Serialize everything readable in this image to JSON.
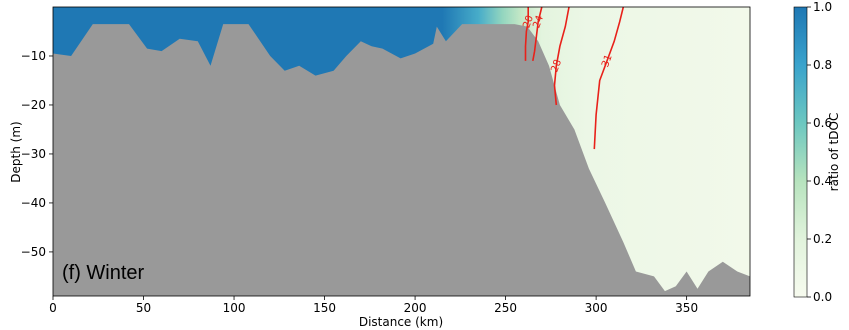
{
  "chart_data": {
    "type": "heatmap",
    "panel_label": "(f) Winter",
    "xlabel": "Distance (km)",
    "ylabel": "Depth (m)",
    "xlim": [
      0,
      385
    ],
    "ylim": [
      -59,
      0
    ],
    "x_ticks": [
      0,
      50,
      100,
      150,
      200,
      250,
      300,
      350
    ],
    "y_ticks": [
      -10,
      -20,
      -30,
      -40,
      -50
    ],
    "colorbar": {
      "label": "ratio of tDOC",
      "range": [
        0.0,
        1.0
      ],
      "ticks": [
        "0.0",
        "0.2",
        "0.4",
        "0.6",
        "0.8",
        "1.0"
      ],
      "colors": [
        "#f7fbef",
        "#e1f3dc",
        "#b7e3be",
        "#6cc7c0",
        "#3aa3cc",
        "#1f78b4"
      ]
    },
    "field": {
      "high_ratio_extent_km": [
        0,
        250
      ],
      "high_ratio_value": 1.0,
      "offshore_value": 0.05
    },
    "bathymetry": {
      "distance": [
        0,
        10,
        22,
        42,
        52,
        60,
        70,
        80,
        87,
        94,
        108,
        120,
        128,
        136,
        145,
        155,
        162,
        170,
        176,
        182,
        192,
        200,
        210,
        212,
        217,
        226,
        240,
        255,
        262,
        268,
        274,
        280,
        288,
        296,
        305,
        315,
        322,
        332,
        338,
        344,
        350,
        356,
        362,
        370,
        378,
        385
      ],
      "depth": [
        -9.5,
        -10,
        -3.5,
        -3.5,
        -8.5,
        -9,
        -6.5,
        -7,
        -12,
        -3.5,
        -3.5,
        -10,
        -13,
        -12,
        -14,
        -13,
        -10,
        -7,
        -8,
        -8.5,
        -10.5,
        -9.5,
        -7.5,
        -4,
        -7,
        -3.5,
        -3.5,
        -3.5,
        -4,
        -7,
        -12,
        -20,
        -25,
        -33,
        -40,
        -48,
        -54,
        -55,
        -58,
        -57,
        -54,
        -57.5,
        -54,
        -52,
        -54,
        -55
      ]
    },
    "contours": [
      {
        "label": "20",
        "distance": [
          262.5,
          262.5,
          261.5,
          261,
          261
        ],
        "depth": [
          0,
          -3,
          -5,
          -8,
          -11
        ]
      },
      {
        "label": "24",
        "distance": [
          270,
          268,
          267,
          266,
          265
        ],
        "depth": [
          0,
          -3,
          -6,
          -9,
          -11
        ]
      },
      {
        "label": "28",
        "distance": [
          285,
          283,
          280,
          278,
          277,
          278
        ],
        "depth": [
          0,
          -4,
          -8,
          -12,
          -16,
          -20
        ]
      },
      {
        "label": "31",
        "distance": [
          315,
          313,
          310,
          306,
          302,
          300,
          299
        ],
        "depth": [
          0,
          -3,
          -7,
          -11,
          -15,
          -22,
          -29
        ]
      }
    ]
  }
}
